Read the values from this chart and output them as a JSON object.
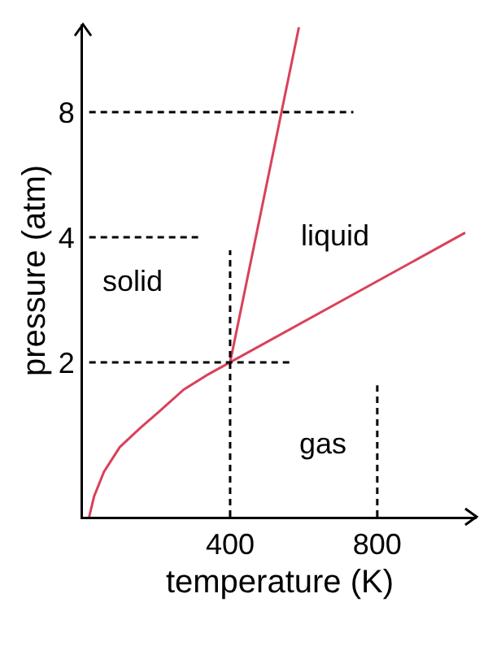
{
  "chart_data": {
    "type": "line",
    "xlabel": "temperature (K)",
    "ylabel": "pressure (atm)",
    "log": "y",
    "xlim": [
      0,
      1070
    ],
    "ylim": [
      0.85,
      13
    ],
    "xticks": [
      400,
      800
    ],
    "yticks": [
      2,
      4,
      8
    ],
    "grid": false,
    "marker": "none",
    "series": [
      {
        "color": "#d9415a",
        "line_style": "solid",
        "x": [
          17,
          30,
          57,
          100,
          156,
          210,
          274,
          340,
          400,
          1039
        ],
        "values": [
          0.85,
          0.95,
          1.09,
          1.25,
          1.39,
          1.53,
          1.72,
          1.87,
          2,
          4.1
        ]
      },
      {
        "color": "#d9415a",
        "line_style": "solid",
        "x": [
          400,
          587
        ],
        "values": [
          2,
          12.8
        ]
      },
      {
        "color": "#000000",
        "line_style": "dashed",
        "x": [
          17,
          735
        ],
        "values": [
          8,
          8
        ]
      },
      {
        "color": "#000000",
        "line_style": "dashed",
        "x": [
          17,
          313
        ],
        "values": [
          4,
          4
        ]
      },
      {
        "color": "#000000",
        "line_style": "dashed",
        "x": [
          17,
          574
        ],
        "values": [
          2,
          2
        ]
      },
      {
        "color": "#000000",
        "line_style": "dashed",
        "x": [
          400,
          400
        ],
        "values": [
          0.85,
          3.72
        ]
      },
      {
        "color": "#000000",
        "line_style": "dashed",
        "x": [
          800,
          800
        ],
        "values": [
          0.85,
          1.76
        ]
      }
    ],
    "annotations": [
      "solid",
      "liquid",
      "gas"
    ]
  }
}
